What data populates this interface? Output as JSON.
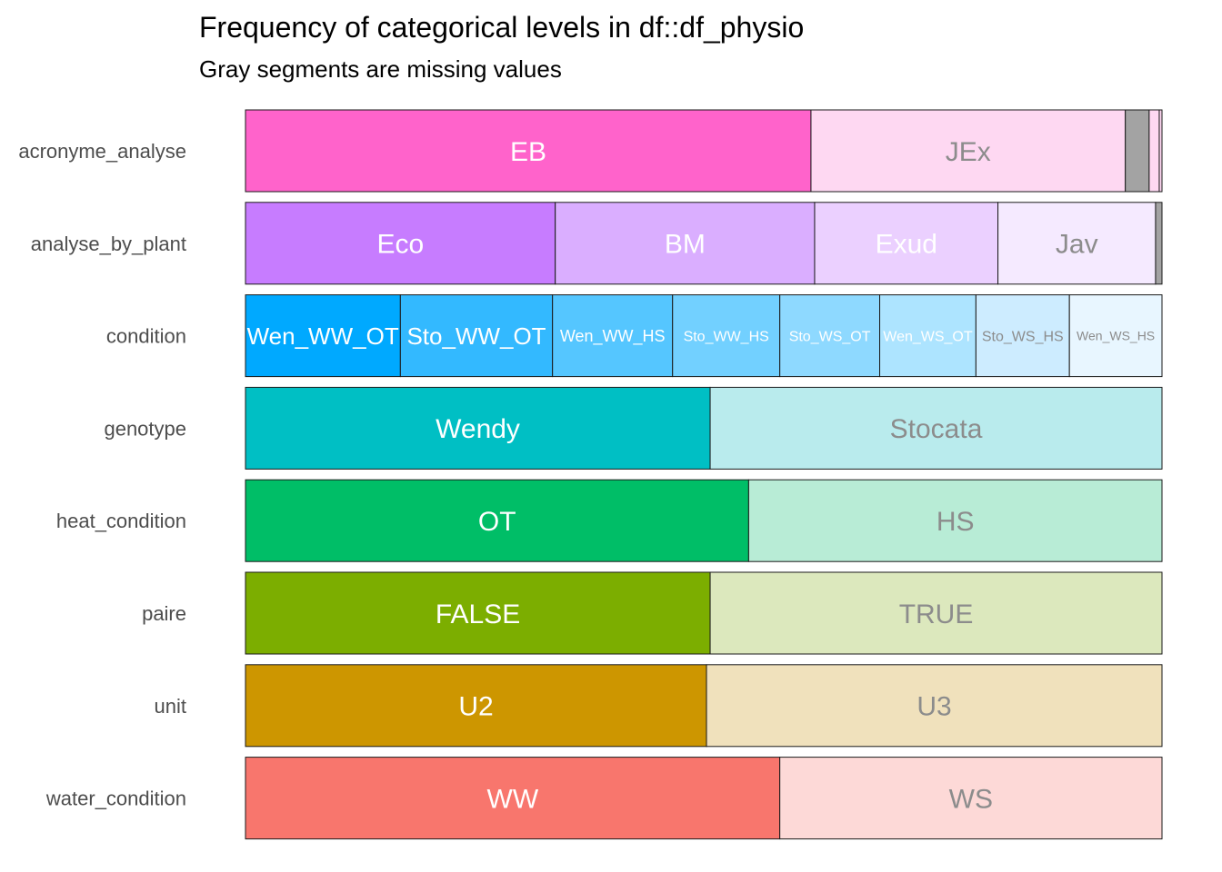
{
  "chart_data": {
    "type": "stacked-bar-horizontal",
    "title": "Frequency of categorical levels in df::df_physio",
    "subtitle": "Gray segments are missing values",
    "xlabel": "",
    "ylabel": "",
    "xlim": [
      0,
      1
    ],
    "grid": false,
    "legend": "none",
    "missing_color": "#a6a6a6",
    "bars": [
      {
        "variable": "acronyme_analyse",
        "segments": [
          {
            "label": "EB",
            "value": 0.617,
            "color": "#ff63cb",
            "text_color": "#ffffff"
          },
          {
            "label": "JEx",
            "value": 0.343,
            "color": "#fed8f2",
            "text_color": "#8c8c8c"
          },
          {
            "label": "",
            "value": 0.026,
            "color": "#a3a3a3",
            "text_color": "#ffffff",
            "missing": true
          },
          {
            "label": "",
            "value": 0.011,
            "color": "#fed8f2",
            "text_color": "#8c8c8c"
          },
          {
            "label": "",
            "value": 0.003,
            "color": "#fed8f2",
            "text_color": "#8c8c8c"
          }
        ]
      },
      {
        "variable": "analyse_by_plant",
        "segments": [
          {
            "label": "Eco",
            "value": 0.338,
            "color": "#c77cff",
            "text_color": "#ffffff"
          },
          {
            "label": "BM",
            "value": 0.283,
            "color": "#daaeff",
            "text_color": "#ffffff"
          },
          {
            "label": "Exud",
            "value": 0.2,
            "color": "#ebd0ff",
            "text_color": "#ffffff"
          },
          {
            "label": "Jav",
            "value": 0.172,
            "color": "#f5eaff",
            "text_color": "#8c8c8c"
          },
          {
            "label": "",
            "value": 0.007,
            "color": "#a3a3a3",
            "text_color": "#ffffff",
            "missing": true
          }
        ]
      },
      {
        "variable": "condition",
        "segments": [
          {
            "label": "Wen_WW_OT",
            "value": 0.169,
            "color": "#00a9ff",
            "text_color": "#ffffff",
            "size": "l"
          },
          {
            "label": "Sto_WW_OT",
            "value": 0.166,
            "color": "#33b9ff",
            "text_color": "#ffffff",
            "size": "l"
          },
          {
            "label": "Wen_WW_HS",
            "value": 0.131,
            "color": "#55c6ff",
            "text_color": "#ffffff",
            "size": "m"
          },
          {
            "label": "Sto_WW_HS",
            "value": 0.117,
            "color": "#72d0ff",
            "text_color": "#ffffff",
            "size": "s"
          },
          {
            "label": "Sto_WS_OT",
            "value": 0.109,
            "color": "#8ed9ff",
            "text_color": "#ffffff",
            "size": "s"
          },
          {
            "label": "Wen_WS_OT",
            "value": 0.105,
            "color": "#ade4ff",
            "text_color": "#ffffff",
            "size": "s"
          },
          {
            "label": "Sto_WS_HS",
            "value": 0.102,
            "color": "#cdecff",
            "text_color": "#8c8c8c",
            "size": "s"
          },
          {
            "label": "Wen_WS_HS",
            "value": 0.101,
            "color": "#e8f6ff",
            "text_color": "#8c8c8c",
            "size": "xs"
          }
        ]
      },
      {
        "variable": "genotype",
        "segments": [
          {
            "label": "Wendy",
            "value": 0.507,
            "color": "#00bfc4",
            "text_color": "#ffffff"
          },
          {
            "label": "Stocata",
            "value": 0.493,
            "color": "#b9ebed",
            "text_color": "#8c8c8c"
          }
        ]
      },
      {
        "variable": "heat_condition",
        "segments": [
          {
            "label": "OT",
            "value": 0.549,
            "color": "#00be67",
            "text_color": "#ffffff"
          },
          {
            "label": "HS",
            "value": 0.451,
            "color": "#b8ecd6",
            "text_color": "#8c8c8c"
          }
        ]
      },
      {
        "variable": "paire",
        "segments": [
          {
            "label": "FALSE",
            "value": 0.507,
            "color": "#7cae00",
            "text_color": "#ffffff"
          },
          {
            "label": "TRUE",
            "value": 0.493,
            "color": "#dce8bd",
            "text_color": "#8c8c8c"
          }
        ]
      },
      {
        "variable": "unit",
        "segments": [
          {
            "label": "U2",
            "value": 0.503,
            "color": "#cd9600",
            "text_color": "#ffffff"
          },
          {
            "label": "U3",
            "value": 0.497,
            "color": "#f0e1bc",
            "text_color": "#8c8c8c"
          }
        ]
      },
      {
        "variable": "water_condition",
        "segments": [
          {
            "label": "WW",
            "value": 0.583,
            "color": "#f8766d",
            "text_color": "#ffffff"
          },
          {
            "label": "WS",
            "value": 0.417,
            "color": "#fdd9d7",
            "text_color": "#8c8c8c"
          }
        ]
      }
    ]
  }
}
